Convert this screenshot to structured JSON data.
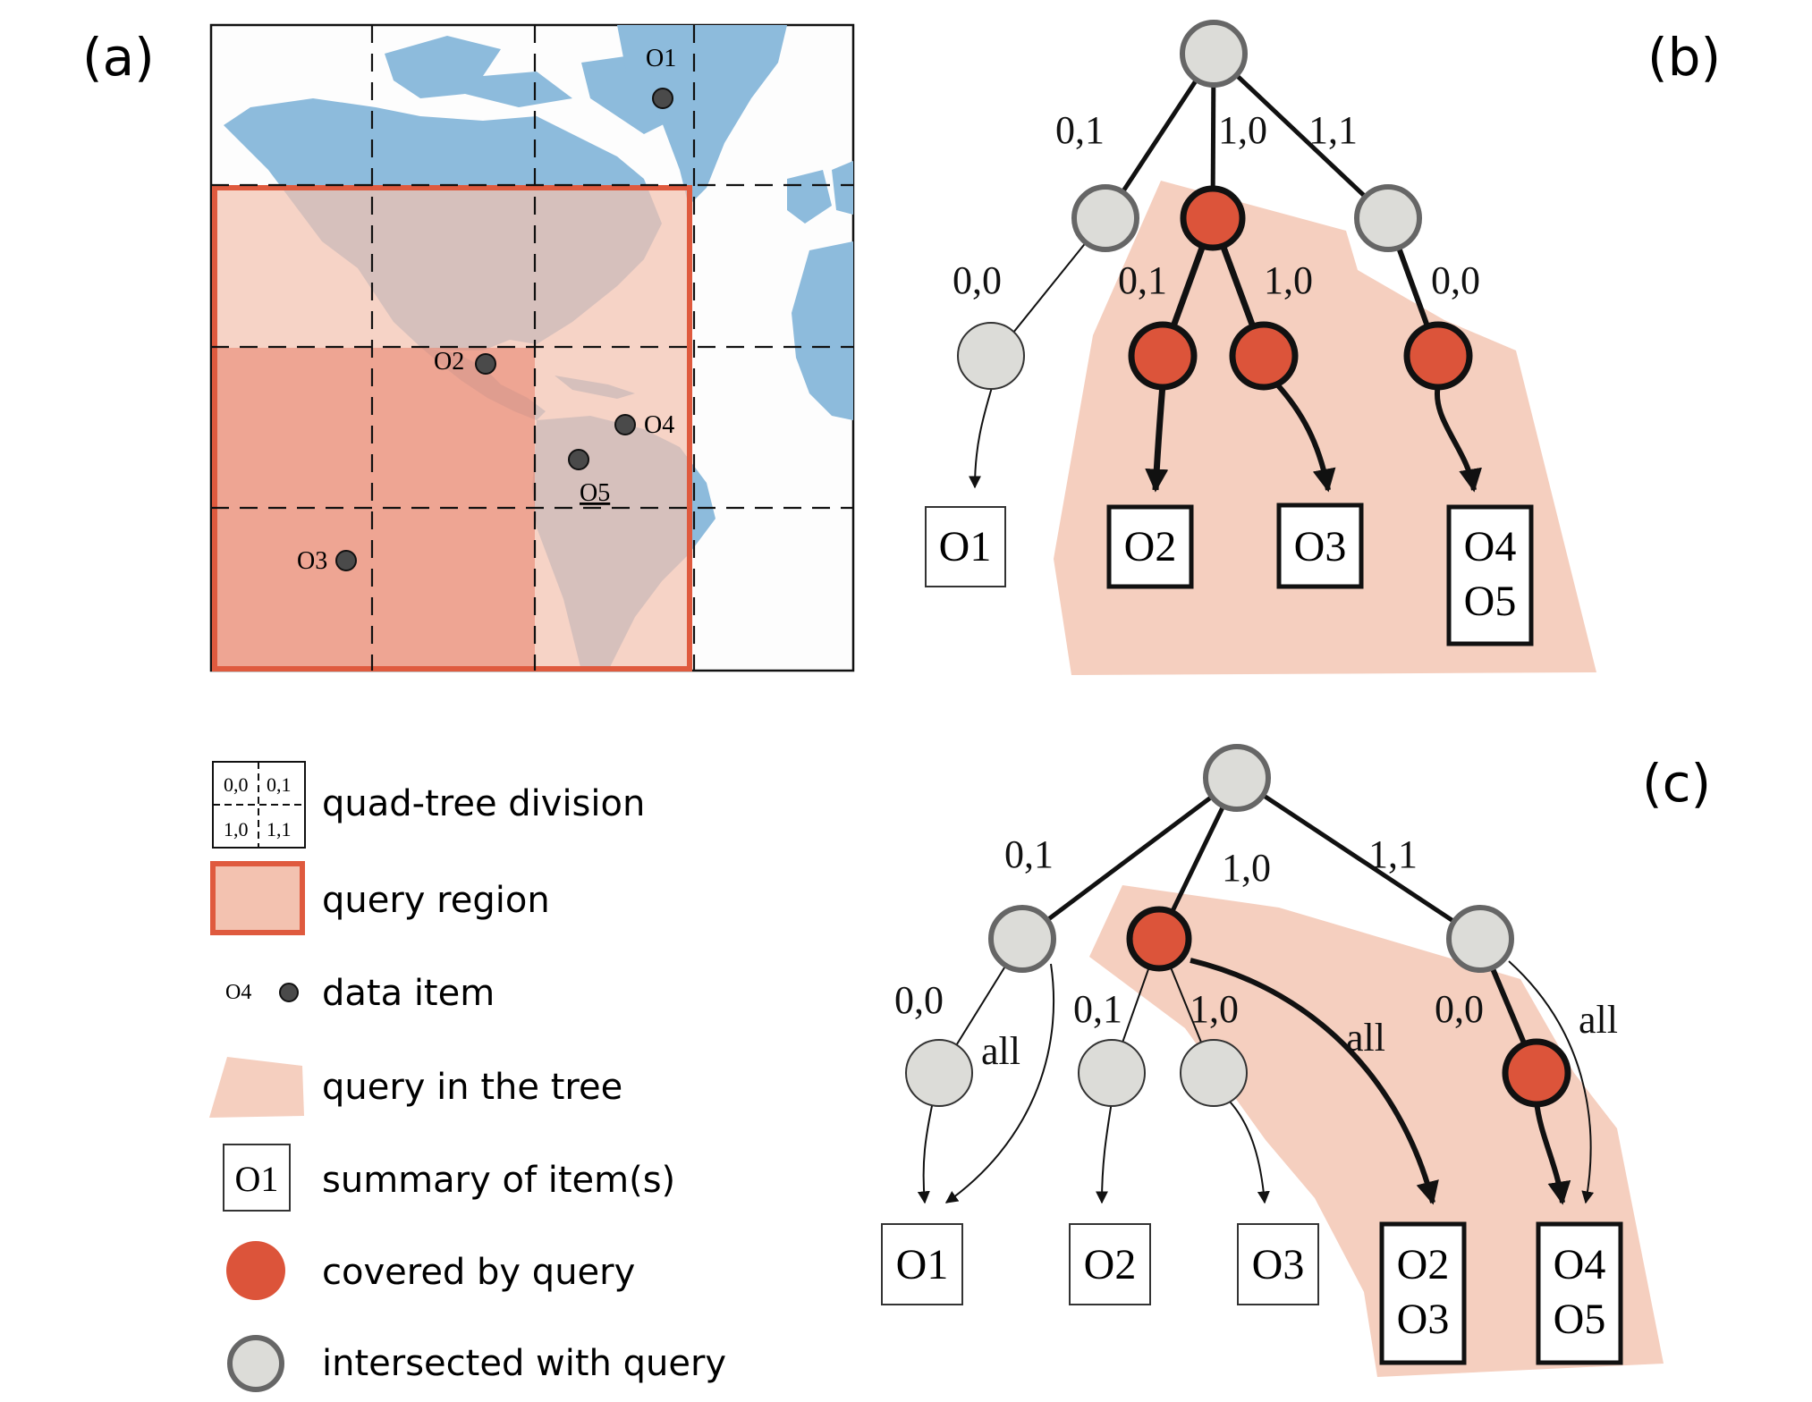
{
  "panels": {
    "a": {
      "label": "(a)"
    },
    "b": {
      "label": "(b)"
    },
    "c": {
      "label": "(c)"
    }
  },
  "colors": {
    "covered": "#dc543a",
    "intersected": "#dcdcd8",
    "node_stroke": "#666666",
    "query_region": "#f3c2b0",
    "query_border": "#df5a3e",
    "query_tree": "#f5cfbf",
    "land": "#8dbbdc",
    "dark": "#111111"
  },
  "map": {
    "items": [
      {
        "id": "O1",
        "label": "O1",
        "underlined": false
      },
      {
        "id": "O2",
        "label": "O2",
        "underlined": false
      },
      {
        "id": "O3",
        "label": "O3",
        "underlined": false
      },
      {
        "id": "O4",
        "label": "O4",
        "underlined": false
      },
      {
        "id": "O5",
        "label": "O5",
        "underlined": true
      }
    ]
  },
  "tree_b": {
    "edge_labels": [
      "0,1",
      "1,0",
      "1,1",
      "0,0",
      "0,1",
      "1,0",
      "0,0"
    ],
    "nodes": [
      {
        "id": "root",
        "state": "intersected"
      },
      {
        "id": "n01",
        "state": "intersected"
      },
      {
        "id": "n10",
        "state": "covered"
      },
      {
        "id": "n11",
        "state": "intersected"
      },
      {
        "id": "n01-00",
        "state": "intersected"
      },
      {
        "id": "n10-01",
        "state": "covered"
      },
      {
        "id": "n10-10",
        "state": "covered"
      },
      {
        "id": "n11-00",
        "state": "covered"
      }
    ],
    "boxes": [
      {
        "lines": [
          "O1"
        ],
        "in_query": false
      },
      {
        "lines": [
          "O2"
        ],
        "in_query": true
      },
      {
        "lines": [
          "O3"
        ],
        "in_query": true
      },
      {
        "lines": [
          "O4",
          "O5"
        ],
        "in_query": true
      }
    ]
  },
  "tree_c": {
    "edge_labels": [
      "0,1",
      "1,0",
      "1,1",
      "0,0",
      "0,1",
      "1,0",
      "0,0"
    ],
    "all_labels": [
      "all",
      "all",
      "all"
    ],
    "nodes": [
      {
        "id": "root",
        "state": "intersected"
      },
      {
        "id": "n01",
        "state": "intersected"
      },
      {
        "id": "n10",
        "state": "covered"
      },
      {
        "id": "n11",
        "state": "intersected"
      },
      {
        "id": "n01-00",
        "state": "intersected"
      },
      {
        "id": "n10-01",
        "state": "intersected"
      },
      {
        "id": "n10-10",
        "state": "intersected"
      },
      {
        "id": "n11-00",
        "state": "covered"
      }
    ],
    "boxes": [
      {
        "lines": [
          "O1"
        ],
        "in_query": false
      },
      {
        "lines": [
          "O2"
        ],
        "in_query": false
      },
      {
        "lines": [
          "O3"
        ],
        "in_query": false
      },
      {
        "lines": [
          "O2",
          "O3"
        ],
        "in_query": true
      },
      {
        "lines": [
          "O4",
          "O5"
        ],
        "in_query": true
      }
    ]
  },
  "legend": {
    "quadtree_cells": [
      "0,0",
      "0,1",
      "1,0",
      "1,1"
    ],
    "item_sample_label": "O4",
    "summary_sample_label": "O1",
    "entries": [
      {
        "key": "quadtree",
        "text": "quad-tree division"
      },
      {
        "key": "query_region",
        "text": "query region"
      },
      {
        "key": "data_item",
        "text": "data item"
      },
      {
        "key": "query_tree",
        "text": "query in the tree"
      },
      {
        "key": "summary",
        "text": "summary of item(s)"
      },
      {
        "key": "covered",
        "text": "covered by query"
      },
      {
        "key": "intersected",
        "text": "intersected with query"
      }
    ]
  }
}
